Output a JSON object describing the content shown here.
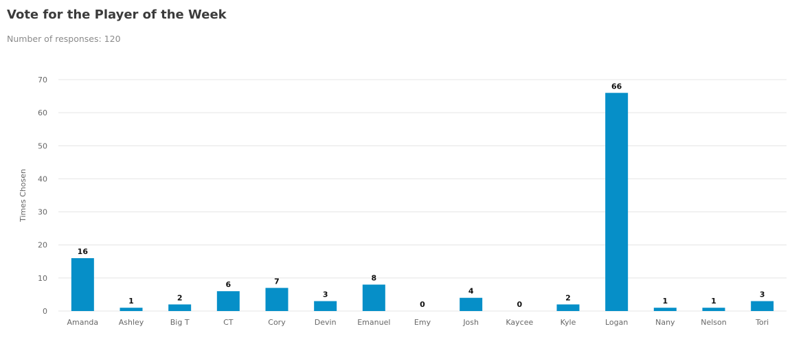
{
  "header": {
    "title": "Vote for the Player of the Week",
    "subtitle": "Number of responses: 120"
  },
  "chart_data": {
    "type": "bar",
    "title": "Vote for the Player of the Week",
    "xlabel": "",
    "ylabel": "Times Chosen",
    "ylim": [
      0,
      70
    ],
    "yticks": [
      0,
      10,
      20,
      30,
      40,
      50,
      60,
      70
    ],
    "grid": true,
    "legend": "none",
    "bar_color": "#068fc8",
    "categories": [
      "Amanda",
      "Ashley",
      "Big T",
      "CT",
      "Cory",
      "Devin",
      "Emanuel",
      "Emy",
      "Josh",
      "Kaycee",
      "Kyle",
      "Logan",
      "Nany",
      "Nelson",
      "Tori"
    ],
    "values": [
      16,
      1,
      2,
      6,
      7,
      3,
      8,
      0,
      4,
      0,
      2,
      66,
      1,
      1,
      3
    ]
  }
}
